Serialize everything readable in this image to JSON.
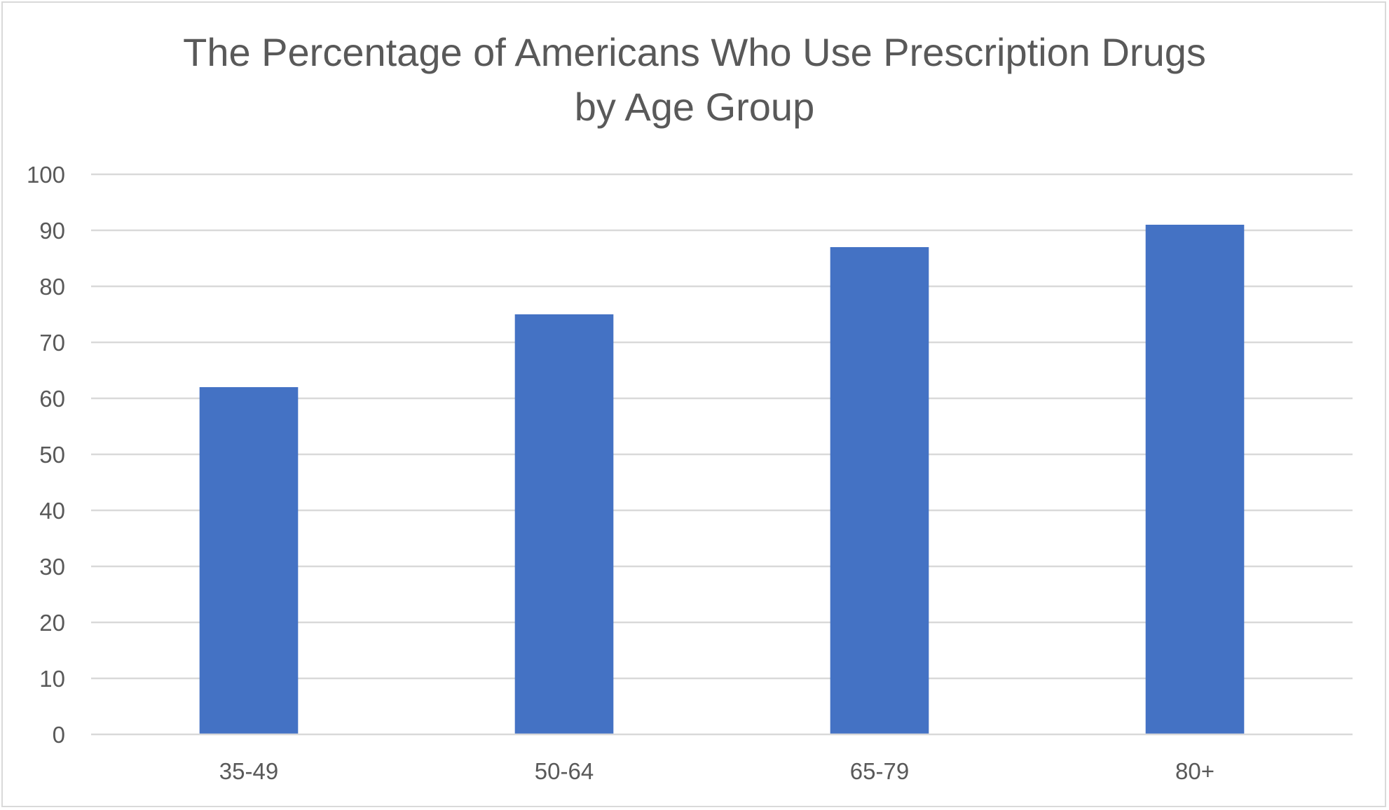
{
  "chart_data": {
    "type": "bar",
    "title": "The Percentage of Americans Who Use Prescription Drugs by Age Group",
    "title_lines": [
      "The Percentage of Americans Who Use Prescription Drugs",
      "by Age Group"
    ],
    "xlabel": "",
    "ylabel": "",
    "categories": [
      "35-49",
      "50-64",
      "65-79",
      "80+"
    ],
    "values": [
      62,
      75,
      87,
      91
    ],
    "ylim": [
      0,
      100
    ],
    "yticks": [
      0,
      10,
      20,
      30,
      40,
      50,
      60,
      70,
      80,
      90,
      100
    ],
    "grid": true,
    "legend": "none",
    "bar_color": "#4472C4"
  }
}
